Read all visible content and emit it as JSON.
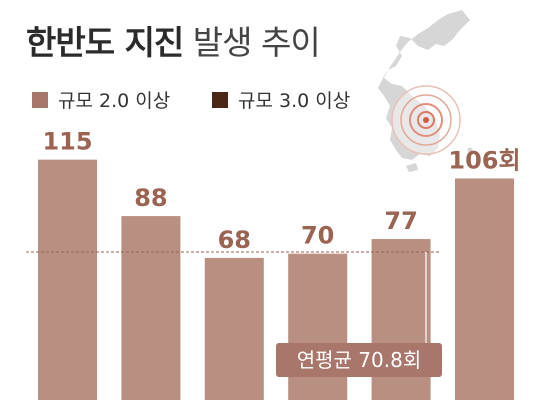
{
  "title": {
    "bold": "한반도 지진",
    "light": "발생 추이"
  },
  "legend": [
    {
      "label": "규모 2.0 이상",
      "color": "#a8766a"
    },
    {
      "label": "규모 3.0 이상",
      "color": "#4a2815"
    }
  ],
  "colors": {
    "bar": "#b88f80",
    "value_text": "#9a6352",
    "avg_line": "#9a6352",
    "avg_box": "#a8766a"
  },
  "chart_data": {
    "type": "bar",
    "series": [
      {
        "name": "규모 2.0 이상",
        "values": [
          115,
          88,
          68,
          70,
          77,
          106
        ]
      }
    ],
    "value_labels": [
      "115",
      "88",
      "68",
      "70",
      "77",
      "106회"
    ],
    "ylim": [
      0,
      120
    ],
    "average": {
      "value": 70.8,
      "label": "연평균 70.8회"
    },
    "xlabel": "",
    "ylabel": "",
    "grid": false
  }
}
